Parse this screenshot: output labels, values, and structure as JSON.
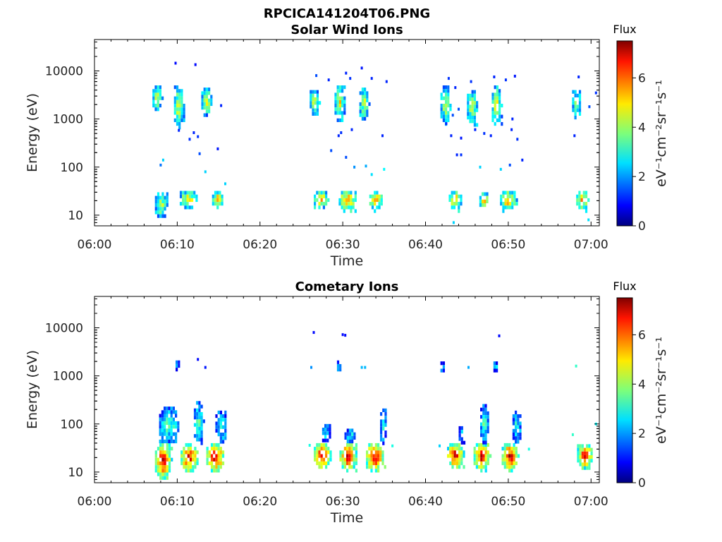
{
  "figure_title": "RPCICA141204T06.PNG",
  "colormap": "jet",
  "chart_data": [
    {
      "type": "heatmap",
      "title": "Solar Wind Ions",
      "xlabel": "Time",
      "ylabel": "Energy (eV)",
      "y_scale": "log",
      "xlim": [
        "06:00",
        "07:01"
      ],
      "ylim": [
        6,
        45000
      ],
      "x_ticks": [
        "06:00",
        "06:10",
        "06:20",
        "06:30",
        "06:40",
        "06:50",
        "07:00"
      ],
      "y_ticks": [
        10,
        100,
        1000,
        10000
      ],
      "y_tick_labels": [
        "10",
        "100",
        "1000",
        "10000"
      ],
      "colorbar": {
        "label": "Flux",
        "unit": "eV⁻¹cm⁻²sr⁻¹s⁻¹",
        "range": [
          0,
          7.5
        ],
        "ticks": [
          0,
          2,
          4,
          6
        ]
      },
      "blobs": [
        {
          "t0": 7.0,
          "t1": 8.2,
          "e0": 1500,
          "e1": 5000,
          "peak": 4.5
        },
        {
          "t0": 9.6,
          "t1": 10.8,
          "e0": 700,
          "e1": 5000,
          "peak": 4.8
        },
        {
          "t0": 12.9,
          "t1": 14.2,
          "e0": 1200,
          "e1": 4500,
          "peak": 4.6
        },
        {
          "t0": 26.0,
          "t1": 27.2,
          "e0": 1300,
          "e1": 4000,
          "peak": 4.7
        },
        {
          "t0": 29.0,
          "t1": 30.3,
          "e0": 900,
          "e1": 5000,
          "peak": 4.8
        },
        {
          "t0": 32.0,
          "t1": 33.2,
          "e0": 1000,
          "e1": 4500,
          "peak": 4.6
        },
        {
          "t0": 41.8,
          "t1": 43.0,
          "e0": 800,
          "e1": 5000,
          "peak": 4.6
        },
        {
          "t0": 45.0,
          "t1": 46.3,
          "e0": 800,
          "e1": 4000,
          "peak": 4.5
        },
        {
          "t0": 48.0,
          "t1": 49.2,
          "e0": 700,
          "e1": 5000,
          "peak": 4.8
        },
        {
          "t0": 57.7,
          "t1": 58.9,
          "e0": 1000,
          "e1": 4000,
          "peak": 4.2
        },
        {
          "t0": 7.3,
          "t1": 8.9,
          "e0": 9,
          "e1": 30,
          "peak": 4.5
        },
        {
          "t0": 10.3,
          "t1": 12.4,
          "e0": 14,
          "e1": 32,
          "peak": 5.2
        },
        {
          "t0": 14.2,
          "t1": 15.6,
          "e0": 14,
          "e1": 32,
          "peak": 5.6
        },
        {
          "t0": 26.5,
          "t1": 28.3,
          "e0": 14,
          "e1": 32,
          "peak": 5.6
        },
        {
          "t0": 29.5,
          "t1": 31.6,
          "e0": 13,
          "e1": 32,
          "peak": 6.0
        },
        {
          "t0": 33.2,
          "t1": 34.8,
          "e0": 13,
          "e1": 32,
          "peak": 5.8
        },
        {
          "t0": 42.8,
          "t1": 44.4,
          "e0": 13,
          "e1": 32,
          "peak": 5.8
        },
        {
          "t0": 46.5,
          "t1": 47.7,
          "e0": 14,
          "e1": 30,
          "peak": 5.2
        },
        {
          "t0": 49.0,
          "t1": 51.0,
          "e0": 13,
          "e1": 32,
          "peak": 5.8
        },
        {
          "t0": 58.2,
          "t1": 59.7,
          "e0": 13,
          "e1": 32,
          "peak": 5.5
        }
      ],
      "specks": [
        {
          "t": 9.8,
          "e": 14500,
          "v": 1.0
        },
        {
          "t": 12.2,
          "e": 13500,
          "v": 1.0
        },
        {
          "t": 10.2,
          "e": 580,
          "v": 1.2
        },
        {
          "t": 11.5,
          "e": 380,
          "v": 1.3
        },
        {
          "t": 12.0,
          "e": 520,
          "v": 1.2
        },
        {
          "t": 12.5,
          "e": 430,
          "v": 1.3
        },
        {
          "t": 14.9,
          "e": 240,
          "v": 1.1
        },
        {
          "t": 15.3,
          "e": 1900,
          "v": 1.2
        },
        {
          "t": 8.3,
          "e": 140,
          "v": 2.5
        },
        {
          "t": 8.0,
          "e": 110,
          "v": 1.8
        },
        {
          "t": 12.7,
          "e": 190,
          "v": 1.5
        },
        {
          "t": 13.4,
          "e": 80,
          "v": 2.5
        },
        {
          "t": 15.8,
          "e": 45,
          "v": 2.5
        },
        {
          "t": 26.8,
          "e": 8000,
          "v": 1.5
        },
        {
          "t": 28.3,
          "e": 6500,
          "v": 1.2
        },
        {
          "t": 30.4,
          "e": 9000,
          "v": 1.2
        },
        {
          "t": 30.9,
          "e": 7000,
          "v": 1.3
        },
        {
          "t": 32.3,
          "e": 11500,
          "v": 1.1
        },
        {
          "t": 33.5,
          "e": 7000,
          "v": 1.2
        },
        {
          "t": 35.3,
          "e": 6000,
          "v": 1.2
        },
        {
          "t": 29.8,
          "e": 520,
          "v": 1.3
        },
        {
          "t": 31.1,
          "e": 600,
          "v": 1.2
        },
        {
          "t": 29.5,
          "e": 450,
          "v": 1.2
        },
        {
          "t": 34.8,
          "e": 450,
          "v": 1.2
        },
        {
          "t": 28.6,
          "e": 220,
          "v": 1.5
        },
        {
          "t": 30.4,
          "e": 160,
          "v": 1.5
        },
        {
          "t": 31.4,
          "e": 100,
          "v": 2.0
        },
        {
          "t": 32.8,
          "e": 105,
          "v": 2.2
        },
        {
          "t": 33.5,
          "e": 70,
          "v": 2.6
        },
        {
          "t": 35.0,
          "e": 90,
          "v": 2.8
        },
        {
          "t": 42.8,
          "e": 7000,
          "v": 1.3
        },
        {
          "t": 43.6,
          "e": 4500,
          "v": 1.2
        },
        {
          "t": 45.5,
          "e": 6000,
          "v": 1.3
        },
        {
          "t": 48.3,
          "e": 7500,
          "v": 1.2
        },
        {
          "t": 49.7,
          "e": 6500,
          "v": 1.3
        },
        {
          "t": 50.8,
          "e": 7800,
          "v": 1.1
        },
        {
          "t": 43.3,
          "e": 1200,
          "v": 1.5
        },
        {
          "t": 44.0,
          "e": 1600,
          "v": 1.5
        },
        {
          "t": 42.5,
          "e": 800,
          "v": 1.2
        },
        {
          "t": 43.1,
          "e": 450,
          "v": 1.2
        },
        {
          "t": 44.3,
          "e": 400,
          "v": 1.1
        },
        {
          "t": 46.0,
          "e": 600,
          "v": 1.2
        },
        {
          "t": 47.1,
          "e": 500,
          "v": 1.3
        },
        {
          "t": 47.9,
          "e": 450,
          "v": 1.2
        },
        {
          "t": 50.5,
          "e": 1000,
          "v": 1.2
        },
        {
          "t": 50.4,
          "e": 600,
          "v": 1.2
        },
        {
          "t": 51.1,
          "e": 380,
          "v": 1.3
        },
        {
          "t": 43.8,
          "e": 180,
          "v": 1.2
        },
        {
          "t": 44.3,
          "e": 180,
          "v": 1.3
        },
        {
          "t": 46.6,
          "e": 100,
          "v": 2.5
        },
        {
          "t": 49.1,
          "e": 90,
          "v": 2.5
        },
        {
          "t": 50.2,
          "e": 110,
          "v": 1.5
        },
        {
          "t": 51.7,
          "e": 140,
          "v": 1.2
        },
        {
          "t": 58.5,
          "e": 7500,
          "v": 1.2
        },
        {
          "t": 58.0,
          "e": 450,
          "v": 1.2
        },
        {
          "t": 60.6,
          "e": 3500,
          "v": 1.3
        },
        {
          "t": 59.8,
          "e": 1800,
          "v": 1.5
        },
        {
          "t": 43.4,
          "e": 7,
          "v": 2.5
        },
        {
          "t": 59.7,
          "e": 8,
          "v": 2.6
        }
      ]
    },
    {
      "type": "heatmap",
      "title": "Cometary Ions",
      "xlabel": "Time",
      "ylabel": "Energy (eV)",
      "y_scale": "log",
      "xlim": [
        "06:00",
        "07:01"
      ],
      "ylim": [
        6,
        45000
      ],
      "x_ticks": [
        "06:00",
        "06:10",
        "06:20",
        "06:30",
        "06:40",
        "06:50",
        "07:00"
      ],
      "y_ticks": [
        10,
        100,
        1000,
        10000
      ],
      "y_tick_labels": [
        "10",
        "100",
        "1000",
        "10000"
      ],
      "colorbar": {
        "label": "Flux",
        "unit": "eV⁻¹cm⁻²sr⁻¹s⁻¹",
        "range": [
          0,
          7.5
        ],
        "ticks": [
          0,
          2,
          4,
          6
        ]
      },
      "blobs": [
        {
          "t0": 7.3,
          "t1": 9.3,
          "e0": 7,
          "e1": 40,
          "peak": 7.2
        },
        {
          "t0": 10.4,
          "t1": 12.5,
          "e0": 10,
          "e1": 40,
          "peak": 7.0
        },
        {
          "t0": 13.5,
          "t1": 15.7,
          "e0": 10,
          "e1": 40,
          "peak": 7.3
        },
        {
          "t0": 26.5,
          "t1": 28.6,
          "e0": 12,
          "e1": 40,
          "peak": 7.3
        },
        {
          "t0": 29.6,
          "t1": 31.7,
          "e0": 11,
          "e1": 40,
          "peak": 7.2
        },
        {
          "t0": 32.8,
          "t1": 35.0,
          "e0": 10,
          "e1": 40,
          "peak": 7.3
        },
        {
          "t0": 42.6,
          "t1": 44.6,
          "e0": 12,
          "e1": 40,
          "peak": 7.2
        },
        {
          "t0": 45.8,
          "t1": 47.8,
          "e0": 11,
          "e1": 40,
          "peak": 7.2
        },
        {
          "t0": 49.2,
          "t1": 51.2,
          "e0": 11,
          "e1": 40,
          "peak": 7.1
        },
        {
          "t0": 58.3,
          "t1": 60.2,
          "e0": 12,
          "e1": 38,
          "peak": 7.0
        },
        {
          "t0": 7.8,
          "t1": 10.2,
          "e0": 40,
          "e1": 230,
          "peak": 3.5
        },
        {
          "t0": 12.0,
          "t1": 13.2,
          "e0": 40,
          "e1": 300,
          "peak": 3.3
        },
        {
          "t0": 14.6,
          "t1": 16.0,
          "e0": 40,
          "e1": 190,
          "peak": 3.3
        },
        {
          "t0": 27.5,
          "t1": 28.5,
          "e0": 40,
          "e1": 100,
          "peak": 3.0
        },
        {
          "t0": 30.2,
          "t1": 31.6,
          "e0": 40,
          "e1": 80,
          "peak": 3.0
        },
        {
          "t0": 34.5,
          "t1": 35.3,
          "e0": 40,
          "e1": 210,
          "peak": 3.2
        },
        {
          "t0": 44.0,
          "t1": 44.6,
          "e0": 40,
          "e1": 90,
          "peak": 2.8
        },
        {
          "t0": 46.6,
          "t1": 47.6,
          "e0": 40,
          "e1": 260,
          "peak": 3.4
        },
        {
          "t0": 50.5,
          "t1": 51.6,
          "e0": 40,
          "e1": 190,
          "peak": 3.2
        },
        {
          "t0": 9.8,
          "t1": 10.3,
          "e0": 1300,
          "e1": 2100,
          "peak": 2.3
        },
        {
          "t0": 29.3,
          "t1": 29.9,
          "e0": 1200,
          "e1": 2100,
          "peak": 2.6
        },
        {
          "t0": 41.8,
          "t1": 42.4,
          "e0": 1200,
          "e1": 2000,
          "peak": 2.5
        },
        {
          "t0": 48.2,
          "t1": 48.8,
          "e0": 1200,
          "e1": 2000,
          "peak": 2.6
        }
      ],
      "specks": [
        {
          "t": 12.5,
          "e": 2200,
          "v": 1.0
        },
        {
          "t": 13.4,
          "e": 1500,
          "v": 1.1
        },
        {
          "t": 26.5,
          "e": 8000,
          "v": 1.0
        },
        {
          "t": 30.0,
          "e": 7200,
          "v": 1.0
        },
        {
          "t": 30.3,
          "e": 7000,
          "v": 1.0
        },
        {
          "t": 48.9,
          "e": 6800,
          "v": 1.0
        },
        {
          "t": 26.2,
          "e": 1500,
          "v": 2.0
        },
        {
          "t": 32.3,
          "e": 1500,
          "v": 2.3
        },
        {
          "t": 32.7,
          "e": 1500,
          "v": 2.3
        },
        {
          "t": 45.2,
          "e": 1500,
          "v": 2.2
        },
        {
          "t": 58.2,
          "e": 1600,
          "v": 3.2
        },
        {
          "t": 26.0,
          "e": 36,
          "v": 3.0
        },
        {
          "t": 36.0,
          "e": 35,
          "v": 3.0
        },
        {
          "t": 52.5,
          "e": 30,
          "v": 3.0
        },
        {
          "t": 57.8,
          "e": 60,
          "v": 3.2
        },
        {
          "t": 60.6,
          "e": 100,
          "v": 2.8
        },
        {
          "t": 41.7,
          "e": 35,
          "v": 2.5
        }
      ]
    }
  ]
}
